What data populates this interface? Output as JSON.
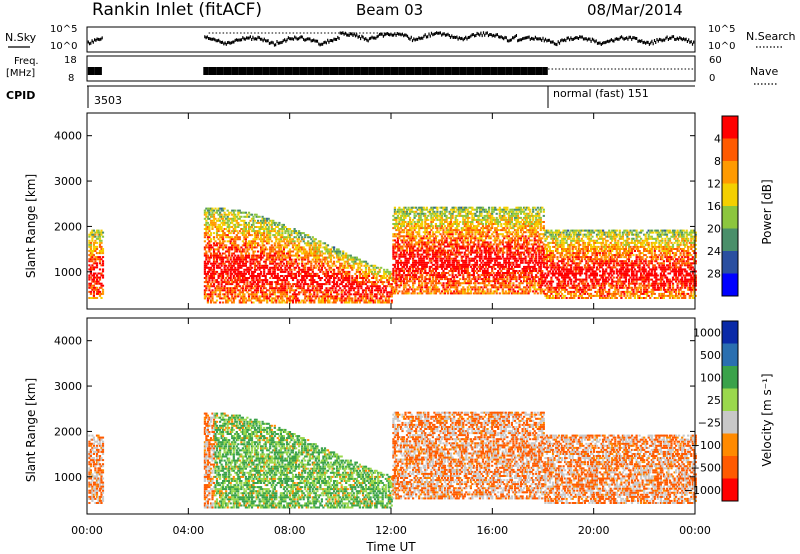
{
  "header": {
    "station": "Rankin Inlet (fitACF)",
    "beam": "Beam 03",
    "date": "08/Mar/2014"
  },
  "strip_labels": {
    "nsky": "N.Sky",
    "nsky_ticks": [
      "10^5",
      "10^0"
    ],
    "nsearch": "N.Search",
    "nsearch_ticks": [
      "10^5",
      "10^0"
    ],
    "freq": "Freq.",
    "freq_unit": "[MHz]",
    "freq_ticks": [
      "18",
      "8"
    ],
    "nave": "Nave",
    "nave_ticks": [
      "60",
      "0"
    ],
    "cpid": "CPID"
  },
  "cpid_segments": [
    {
      "label": "3503",
      "start_hour": 0.0
    },
    {
      "label": "normal (fast) 151",
      "start_hour": 18.2
    }
  ],
  "colors": {
    "power": [
      "#0000ff",
      "#2a4fa0",
      "#4a8f6a",
      "#8cc63e",
      "#f4d000",
      "#ff9a00",
      "#ff5a00",
      "#ff0000"
    ],
    "velocity": [
      "#ff0000",
      "#ff5a00",
      "#ff8a00",
      "#c8c8c8",
      "#9ad84c",
      "#3aa24a",
      "#2a6fb0",
      "#0a2aa8"
    ]
  },
  "chart_data": [
    {
      "type": "heatmap",
      "panel": "power",
      "xlabel": "",
      "ylabel": "Slant Range [km]",
      "x_hours": [
        0,
        24
      ],
      "ylim": [
        180,
        4500
      ],
      "y_ticks": [
        1000,
        2000,
        3000,
        4000
      ],
      "colorbar_label": "Power [dB]",
      "colorbar_ticks": [
        "4",
        "8",
        "12",
        "16",
        "20",
        "24",
        "28"
      ],
      "data_gaps_hours": [
        [
          0.6,
          4.6
        ]
      ]
    },
    {
      "type": "heatmap",
      "panel": "velocity",
      "xlabel": "Time UT",
      "ylabel": "Slant Range [km]",
      "x_hours": [
        0,
        24
      ],
      "x_ticks": [
        "00:00",
        "04:00",
        "08:00",
        "12:00",
        "16:00",
        "20:00",
        "00:00"
      ],
      "ylim": [
        180,
        4500
      ],
      "y_ticks": [
        1000,
        2000,
        3000,
        4000
      ],
      "colorbar_label": "Velocity [m s⁻¹]",
      "colorbar_ticks": [
        "1000",
        "500",
        "100",
        "25",
        "−25",
        "−100",
        "−500",
        "−1000"
      ],
      "data_gaps_hours": [
        [
          0.6,
          4.6
        ]
      ]
    }
  ]
}
